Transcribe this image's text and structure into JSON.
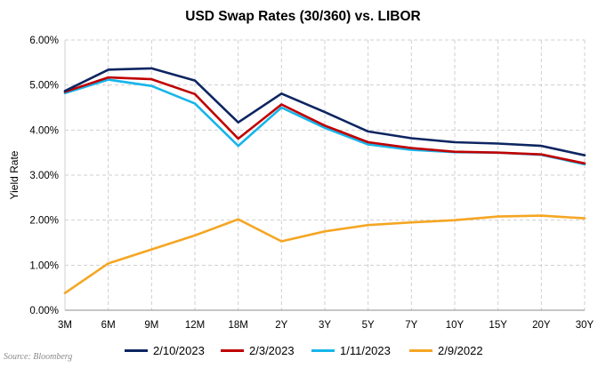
{
  "chart_data": {
    "type": "line",
    "title": "USD Swap Rates (30/360) vs. LIBOR",
    "xlabel": "",
    "ylabel": "Yield Rate",
    "categories": [
      "3M",
      "6M",
      "9M",
      "12M",
      "18M",
      "2Y",
      "3Y",
      "5Y",
      "7Y",
      "10Y",
      "15Y",
      "20Y",
      "30Y"
    ],
    "y_tick_labels": [
      "0.00%",
      "1.00%",
      "2.00%",
      "3.00%",
      "4.00%",
      "5.00%",
      "6.00%"
    ],
    "ylim": [
      0,
      6
    ],
    "grid": true,
    "legend_position": "bottom",
    "series": [
      {
        "name": "2/10/2023",
        "color": "#0d2561",
        "values": [
          4.87,
          5.34,
          5.37,
          5.1,
          4.17,
          4.81,
          4.4,
          3.97,
          3.82,
          3.73,
          3.7,
          3.65,
          3.44
        ]
      },
      {
        "name": "2/3/2023",
        "color": "#c00000",
        "values": [
          4.85,
          5.17,
          5.13,
          4.8,
          3.81,
          4.57,
          4.1,
          3.73,
          3.6,
          3.52,
          3.5,
          3.46,
          3.26
        ]
      },
      {
        "name": "1/11/2023",
        "color": "#16b5ea",
        "values": [
          4.82,
          5.12,
          4.98,
          4.59,
          3.65,
          4.5,
          4.05,
          3.68,
          3.56,
          3.51,
          3.5,
          3.45,
          3.24
        ]
      },
      {
        "name": "2/9/2022",
        "color": "#f5a623",
        "values": [
          0.38,
          1.04,
          1.35,
          1.66,
          2.02,
          1.53,
          1.75,
          1.89,
          1.95,
          2.0,
          2.08,
          2.1,
          2.04
        ]
      }
    ]
  },
  "source": "Source: Bloomberg"
}
